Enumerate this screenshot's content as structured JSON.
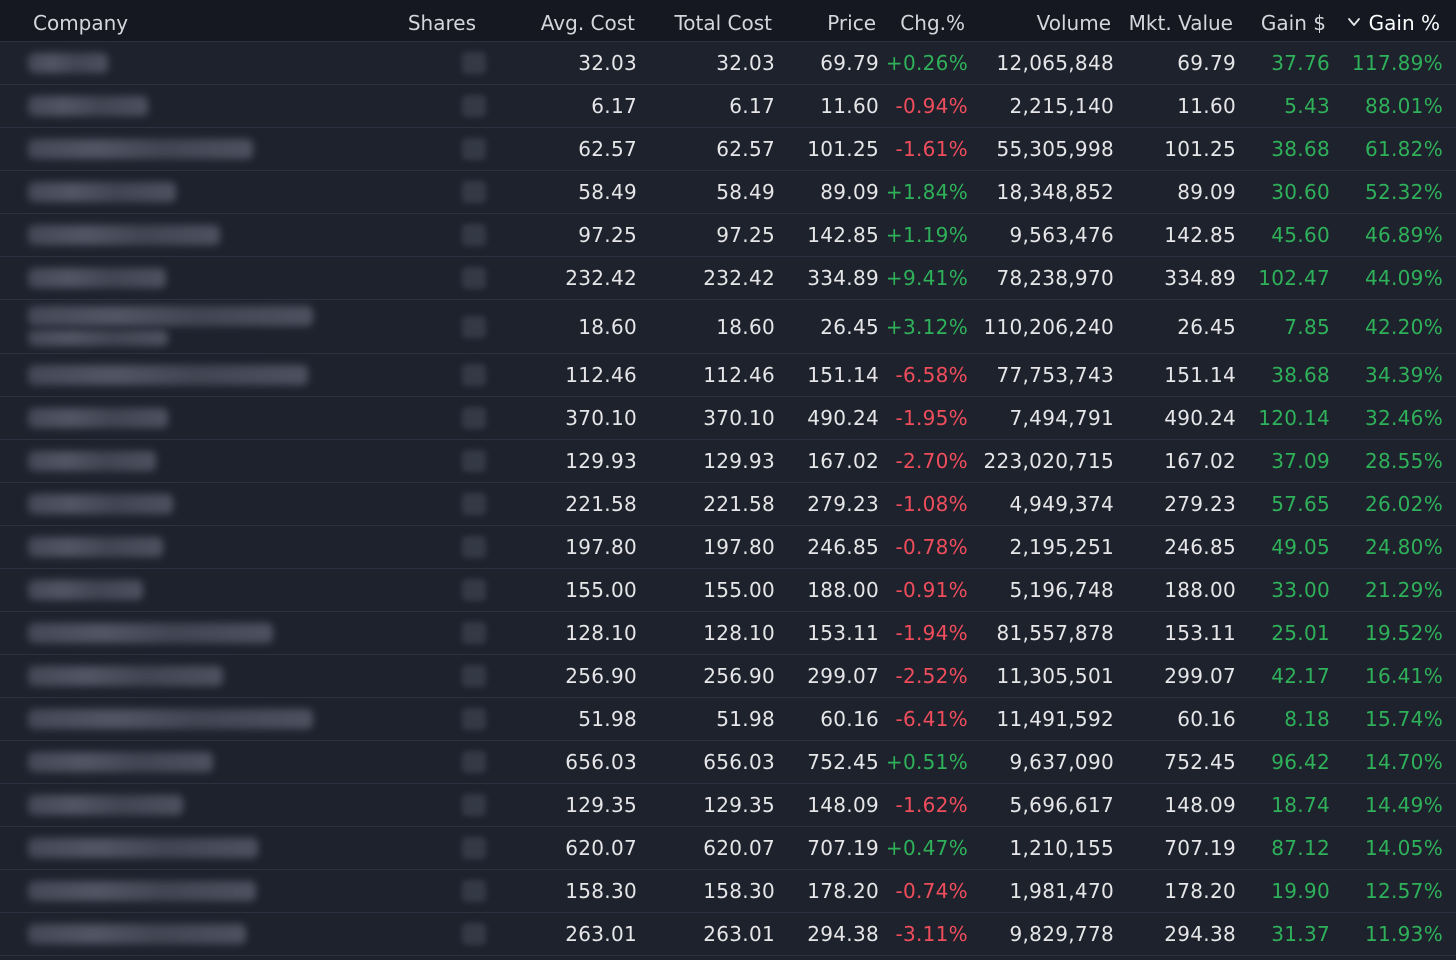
{
  "columns": {
    "company": "Company",
    "shares": "Shares",
    "avg_cost": "Avg. Cost",
    "total_cost": "Total Cost",
    "price": "Price",
    "chg": "Chg.%",
    "volume": "Volume",
    "mkt_value": "Mkt. Value",
    "gain_usd": "Gain $",
    "gain_pct": "Gain %"
  },
  "sort": {
    "column": "gain_pct",
    "direction": "descending",
    "icon": "chevron-down-icon"
  },
  "colors": {
    "positive": "#2fb15a",
    "negative": "#ef4d5c",
    "background": "#1e222d",
    "header": "#151820"
  },
  "rows": [
    {
      "avg_cost": "32.03",
      "total_cost": "32.03",
      "price": "69.79",
      "chg": "+0.26%",
      "volume": "12,065,848",
      "mkt_value": "69.79",
      "gain_usd": "37.76",
      "gain_pct": "117.89%"
    },
    {
      "avg_cost": "6.17",
      "total_cost": "6.17",
      "price": "11.60",
      "chg": "-0.94%",
      "volume": "2,215,140",
      "mkt_value": "11.60",
      "gain_usd": "5.43",
      "gain_pct": "88.01%"
    },
    {
      "avg_cost": "62.57",
      "total_cost": "62.57",
      "price": "101.25",
      "chg": "-1.61%",
      "volume": "55,305,998",
      "mkt_value": "101.25",
      "gain_usd": "38.68",
      "gain_pct": "61.82%"
    },
    {
      "avg_cost": "58.49",
      "total_cost": "58.49",
      "price": "89.09",
      "chg": "+1.84%",
      "volume": "18,348,852",
      "mkt_value": "89.09",
      "gain_usd": "30.60",
      "gain_pct": "52.32%"
    },
    {
      "avg_cost": "97.25",
      "total_cost": "97.25",
      "price": "142.85",
      "chg": "+1.19%",
      "volume": "9,563,476",
      "mkt_value": "142.85",
      "gain_usd": "45.60",
      "gain_pct": "46.89%"
    },
    {
      "avg_cost": "232.42",
      "total_cost": "232.42",
      "price": "334.89",
      "chg": "+9.41%",
      "volume": "78,238,970",
      "mkt_value": "334.89",
      "gain_usd": "102.47",
      "gain_pct": "44.09%"
    },
    {
      "avg_cost": "18.60",
      "total_cost": "18.60",
      "price": "26.45",
      "chg": "+3.12%",
      "volume": "110,206,240",
      "mkt_value": "26.45",
      "gain_usd": "7.85",
      "gain_pct": "42.20%"
    },
    {
      "avg_cost": "112.46",
      "total_cost": "112.46",
      "price": "151.14",
      "chg": "-6.58%",
      "volume": "77,753,743",
      "mkt_value": "151.14",
      "gain_usd": "38.68",
      "gain_pct": "34.39%"
    },
    {
      "avg_cost": "370.10",
      "total_cost": "370.10",
      "price": "490.24",
      "chg": "-1.95%",
      "volume": "7,494,791",
      "mkt_value": "490.24",
      "gain_usd": "120.14",
      "gain_pct": "32.46%"
    },
    {
      "avg_cost": "129.93",
      "total_cost": "129.93",
      "price": "167.02",
      "chg": "-2.70%",
      "volume": "223,020,715",
      "mkt_value": "167.02",
      "gain_usd": "37.09",
      "gain_pct": "28.55%"
    },
    {
      "avg_cost": "221.58",
      "total_cost": "221.58",
      "price": "279.23",
      "chg": "-1.08%",
      "volume": "4,949,374",
      "mkt_value": "279.23",
      "gain_usd": "57.65",
      "gain_pct": "26.02%"
    },
    {
      "avg_cost": "197.80",
      "total_cost": "197.80",
      "price": "246.85",
      "chg": "-0.78%",
      "volume": "2,195,251",
      "mkt_value": "246.85",
      "gain_usd": "49.05",
      "gain_pct": "24.80%"
    },
    {
      "avg_cost": "155.00",
      "total_cost": "155.00",
      "price": "188.00",
      "chg": "-0.91%",
      "volume": "5,196,748",
      "mkt_value": "188.00",
      "gain_usd": "33.00",
      "gain_pct": "21.29%"
    },
    {
      "avg_cost": "128.10",
      "total_cost": "128.10",
      "price": "153.11",
      "chg": "-1.94%",
      "volume": "81,557,878",
      "mkt_value": "153.11",
      "gain_usd": "25.01",
      "gain_pct": "19.52%"
    },
    {
      "avg_cost": "256.90",
      "total_cost": "256.90",
      "price": "299.07",
      "chg": "-2.52%",
      "volume": "11,305,501",
      "mkt_value": "299.07",
      "gain_usd": "42.17",
      "gain_pct": "16.41%"
    },
    {
      "avg_cost": "51.98",
      "total_cost": "51.98",
      "price": "60.16",
      "chg": "-6.41%",
      "volume": "11,491,592",
      "mkt_value": "60.16",
      "gain_usd": "8.18",
      "gain_pct": "15.74%"
    },
    {
      "avg_cost": "656.03",
      "total_cost": "656.03",
      "price": "752.45",
      "chg": "+0.51%",
      "volume": "9,637,090",
      "mkt_value": "752.45",
      "gain_usd": "96.42",
      "gain_pct": "14.70%"
    },
    {
      "avg_cost": "129.35",
      "total_cost": "129.35",
      "price": "148.09",
      "chg": "-1.62%",
      "volume": "5,696,617",
      "mkt_value": "148.09",
      "gain_usd": "18.74",
      "gain_pct": "14.49%"
    },
    {
      "avg_cost": "620.07",
      "total_cost": "620.07",
      "price": "707.19",
      "chg": "+0.47%",
      "volume": "1,210,155",
      "mkt_value": "707.19",
      "gain_usd": "87.12",
      "gain_pct": "14.05%"
    },
    {
      "avg_cost": "158.30",
      "total_cost": "158.30",
      "price": "178.20",
      "chg": "-0.74%",
      "volume": "1,981,470",
      "mkt_value": "178.20",
      "gain_usd": "19.90",
      "gain_pct": "12.57%"
    },
    {
      "avg_cost": "263.01",
      "total_cost": "263.01",
      "price": "294.38",
      "chg": "-3.11%",
      "volume": "9,829,778",
      "mkt_value": "294.38",
      "gain_usd": "31.37",
      "gain_pct": "11.93%"
    }
  ]
}
